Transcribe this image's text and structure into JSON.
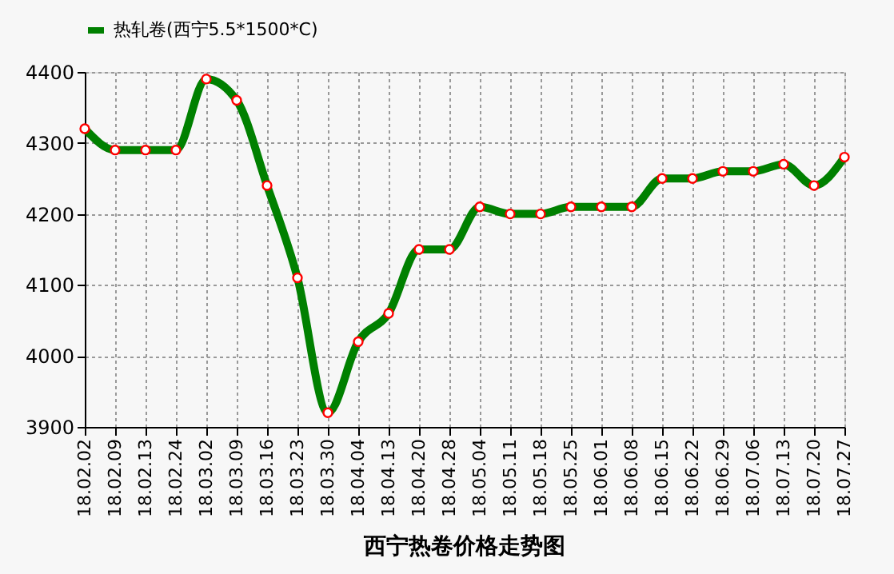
{
  "chart_data": {
    "type": "line",
    "title": "西宁热卷价格走势图",
    "categories": [
      "18.02.02",
      "18.02.09",
      "18.02.13",
      "18.02.24",
      "18.03.02",
      "18.03.09",
      "18.03.16",
      "18.03.23",
      "18.03.30",
      "18.04.04",
      "18.04.13",
      "18.04.20",
      "18.04.28",
      "18.05.04",
      "18.05.11",
      "18.05.18",
      "18.05.25",
      "18.06.01",
      "18.06.08",
      "18.06.15",
      "18.06.22",
      "18.06.29",
      "18.07.06",
      "18.07.13",
      "18.07.20",
      "18.07.27"
    ],
    "series": [
      {
        "name": "热轧卷(西宁5.5*1500*C)",
        "color": "#008000",
        "values": [
          4320,
          4290,
          4290,
          4290,
          4390,
          4360,
          4240,
          4110,
          3920,
          4020,
          4060,
          4150,
          4150,
          4210,
          4200,
          4200,
          4210,
          4210,
          4210,
          4250,
          4250,
          4260,
          4260,
          4270,
          4240,
          4280
        ]
      }
    ],
    "ylim": [
      3900,
      4400
    ],
    "yticks": [
      3900,
      4000,
      4100,
      4200,
      4300,
      4400
    ],
    "grid": true,
    "legend": "top",
    "marker": "circle",
    "line_style": "solid"
  }
}
